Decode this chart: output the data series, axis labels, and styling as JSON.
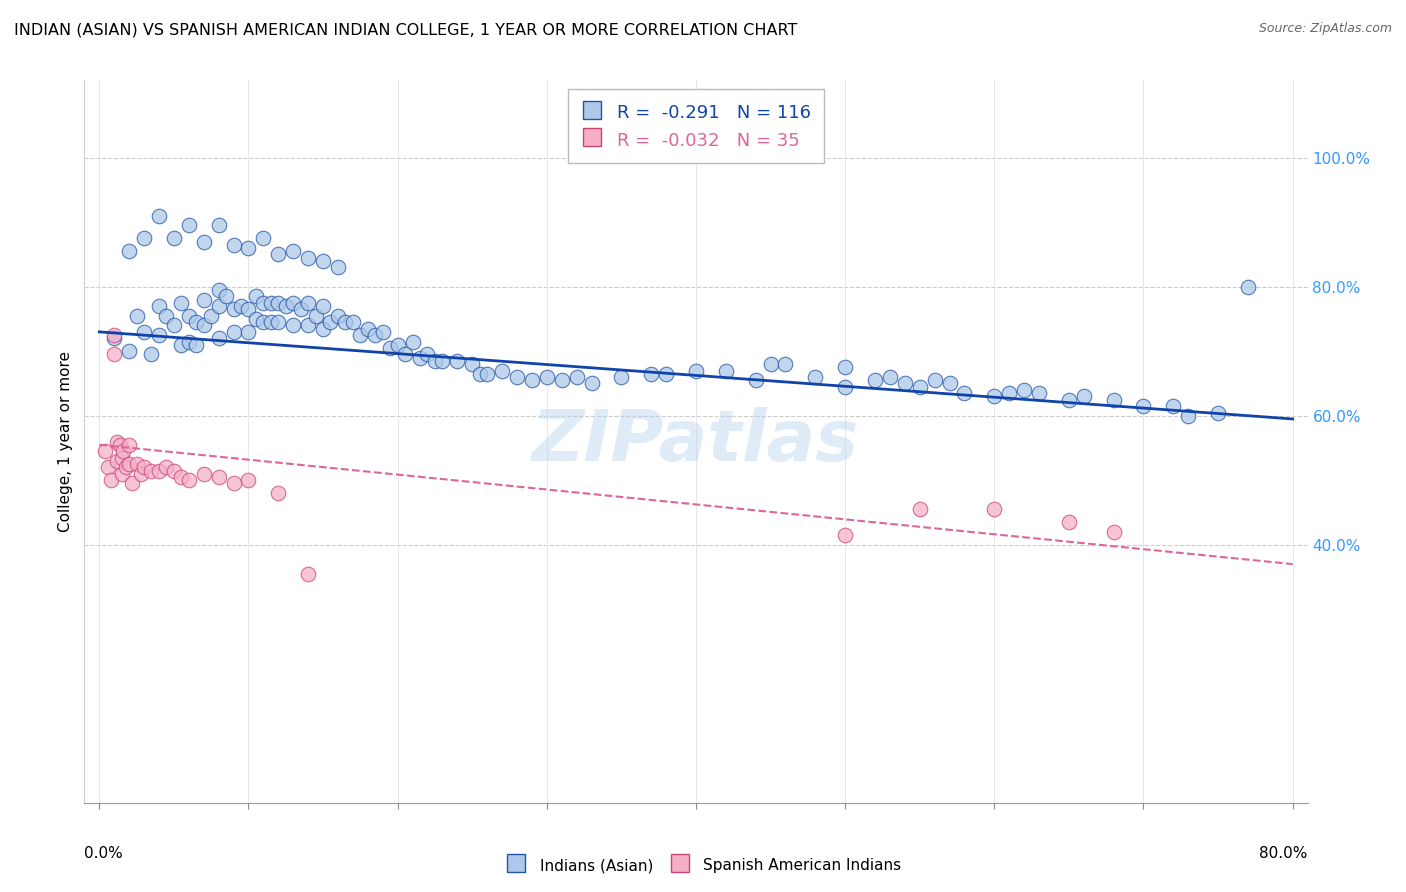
{
  "title": "INDIAN (ASIAN) VS SPANISH AMERICAN INDIAN COLLEGE, 1 YEAR OR MORE CORRELATION CHART",
  "source": "Source: ZipAtlas.com",
  "ylabel": "College, 1 year or more",
  "ytick_labels": [
    "40.0%",
    "60.0%",
    "80.0%",
    "100.0%"
  ],
  "ytick_vals": [
    0.4,
    0.6,
    0.8,
    1.0
  ],
  "xtick_vals": [
    0.0,
    0.1,
    0.2,
    0.3,
    0.4,
    0.5,
    0.6,
    0.7,
    0.8
  ],
  "xlim": [
    -0.01,
    0.81
  ],
  "ylim": [
    0.0,
    1.12
  ],
  "legend_blue": {
    "R": "-0.291",
    "N": "116",
    "label": "Indians (Asian)"
  },
  "legend_pink": {
    "R": "-0.032",
    "N": "35",
    "label": "Spanish American Indians"
  },
  "blue_fill": "#adc8e8",
  "blue_edge": "#2255aa",
  "pink_fill": "#f5b0c8",
  "pink_edge": "#cc4477",
  "blue_line_color": "#1144aa",
  "pink_line_color": "#dd6699",
  "blue_scatter_x": [
    0.01,
    0.02,
    0.025,
    0.03,
    0.035,
    0.04,
    0.04,
    0.045,
    0.05,
    0.055,
    0.055,
    0.06,
    0.06,
    0.065,
    0.065,
    0.07,
    0.07,
    0.075,
    0.08,
    0.08,
    0.08,
    0.085,
    0.09,
    0.09,
    0.095,
    0.1,
    0.1,
    0.105,
    0.105,
    0.11,
    0.11,
    0.115,
    0.115,
    0.12,
    0.12,
    0.125,
    0.13,
    0.13,
    0.135,
    0.14,
    0.14,
    0.145,
    0.15,
    0.15,
    0.155,
    0.16,
    0.165,
    0.17,
    0.175,
    0.18,
    0.185,
    0.19,
    0.195,
    0.2,
    0.205,
    0.21,
    0.215,
    0.22,
    0.225,
    0.23,
    0.24,
    0.25,
    0.255,
    0.26,
    0.27,
    0.28,
    0.29,
    0.3,
    0.31,
    0.32,
    0.33,
    0.35,
    0.37,
    0.38,
    0.4,
    0.42,
    0.44,
    0.45,
    0.46,
    0.48,
    0.5,
    0.5,
    0.52,
    0.53,
    0.54,
    0.55,
    0.56,
    0.57,
    0.58,
    0.6,
    0.61,
    0.62,
    0.63,
    0.65,
    0.66,
    0.68,
    0.7,
    0.72,
    0.73,
    0.75,
    0.02,
    0.03,
    0.04,
    0.05,
    0.06,
    0.07,
    0.08,
    0.09,
    0.1,
    0.11,
    0.12,
    0.13,
    0.14,
    0.15,
    0.16,
    0.77
  ],
  "blue_scatter_y": [
    0.72,
    0.7,
    0.755,
    0.73,
    0.695,
    0.77,
    0.725,
    0.755,
    0.74,
    0.775,
    0.71,
    0.755,
    0.715,
    0.745,
    0.71,
    0.78,
    0.74,
    0.755,
    0.795,
    0.77,
    0.72,
    0.785,
    0.765,
    0.73,
    0.77,
    0.765,
    0.73,
    0.785,
    0.75,
    0.775,
    0.745,
    0.775,
    0.745,
    0.775,
    0.745,
    0.77,
    0.775,
    0.74,
    0.765,
    0.775,
    0.74,
    0.755,
    0.77,
    0.735,
    0.745,
    0.755,
    0.745,
    0.745,
    0.725,
    0.735,
    0.725,
    0.73,
    0.705,
    0.71,
    0.695,
    0.715,
    0.69,
    0.695,
    0.685,
    0.685,
    0.685,
    0.68,
    0.665,
    0.665,
    0.67,
    0.66,
    0.655,
    0.66,
    0.655,
    0.66,
    0.65,
    0.66,
    0.665,
    0.665,
    0.67,
    0.67,
    0.655,
    0.68,
    0.68,
    0.66,
    0.675,
    0.645,
    0.655,
    0.66,
    0.65,
    0.645,
    0.655,
    0.65,
    0.635,
    0.63,
    0.635,
    0.64,
    0.635,
    0.625,
    0.63,
    0.625,
    0.615,
    0.615,
    0.6,
    0.605,
    0.855,
    0.875,
    0.91,
    0.875,
    0.895,
    0.87,
    0.895,
    0.865,
    0.86,
    0.875,
    0.85,
    0.855,
    0.845,
    0.84,
    0.83,
    0.8
  ],
  "pink_scatter_x": [
    0.004,
    0.006,
    0.008,
    0.01,
    0.01,
    0.012,
    0.012,
    0.014,
    0.015,
    0.015,
    0.016,
    0.018,
    0.02,
    0.02,
    0.022,
    0.025,
    0.028,
    0.03,
    0.035,
    0.04,
    0.045,
    0.05,
    0.055,
    0.06,
    0.07,
    0.08,
    0.09,
    0.1,
    0.12,
    0.14,
    0.5,
    0.55,
    0.6,
    0.65,
    0.68
  ],
  "pink_scatter_y": [
    0.545,
    0.52,
    0.5,
    0.725,
    0.695,
    0.56,
    0.53,
    0.555,
    0.535,
    0.51,
    0.545,
    0.52,
    0.555,
    0.525,
    0.495,
    0.525,
    0.51,
    0.52,
    0.515,
    0.515,
    0.52,
    0.515,
    0.505,
    0.5,
    0.51,
    0.505,
    0.495,
    0.5,
    0.48,
    0.355,
    0.415,
    0.455,
    0.455,
    0.435,
    0.42
  ],
  "watermark": "ZIPatlas",
  "blue_line": [
    0.0,
    0.8,
    0.73,
    0.595
  ],
  "pink_line": [
    0.0,
    0.8,
    0.555,
    0.37
  ],
  "grid_color": "#cccccc",
  "grid_linestyle": "--"
}
